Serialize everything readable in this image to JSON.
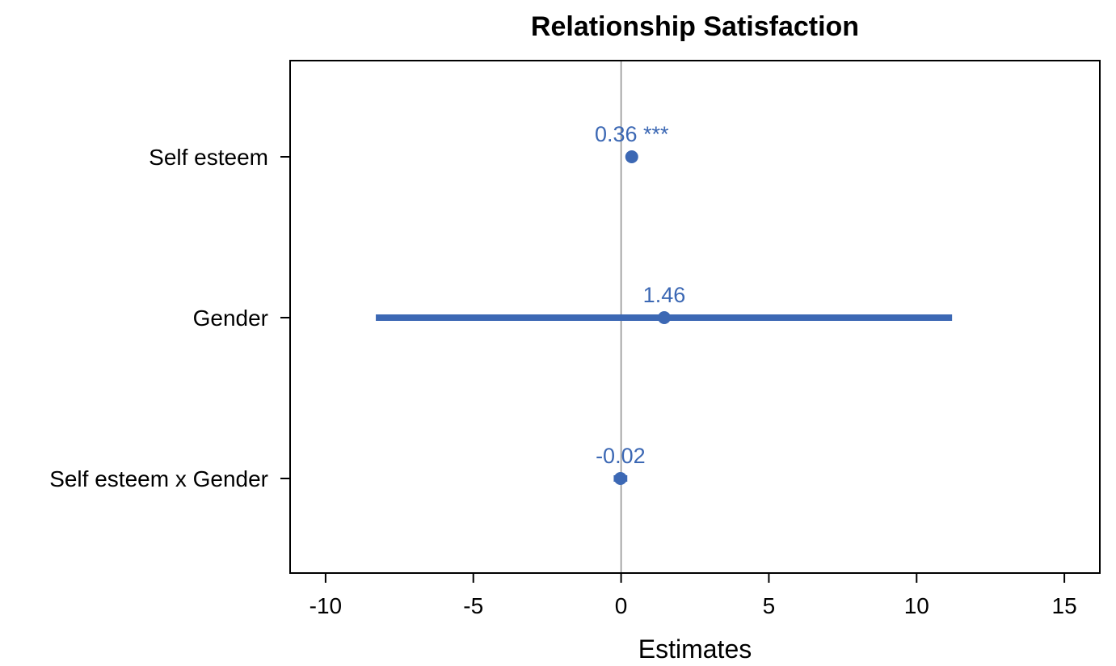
{
  "chart_data": {
    "type": "forest",
    "title": "Relationship Satisfaction",
    "xlabel": "Estimates",
    "ylabel": "",
    "xlim": [
      -11.2,
      16.2
    ],
    "xticks": [
      -10,
      -5,
      0,
      5,
      10,
      15
    ],
    "xtick_labels": [
      "-10",
      "-5",
      "0",
      "5",
      "10",
      "15"
    ],
    "reference_line": 0,
    "grid": false,
    "color": "#3c68b4",
    "terms": [
      {
        "label": "Self esteem",
        "estimate": 0.36,
        "ci_low": 0.3,
        "ci_high": 0.42,
        "label_text": "0.36 ***"
      },
      {
        "label": "Gender",
        "estimate": 1.46,
        "ci_low": -8.3,
        "ci_high": 11.2,
        "label_text": "1.46"
      },
      {
        "label": "Self esteem x Gender",
        "estimate": -0.02,
        "ci_low": -0.25,
        "ci_high": 0.21,
        "label_text": "-0.02"
      }
    ]
  }
}
